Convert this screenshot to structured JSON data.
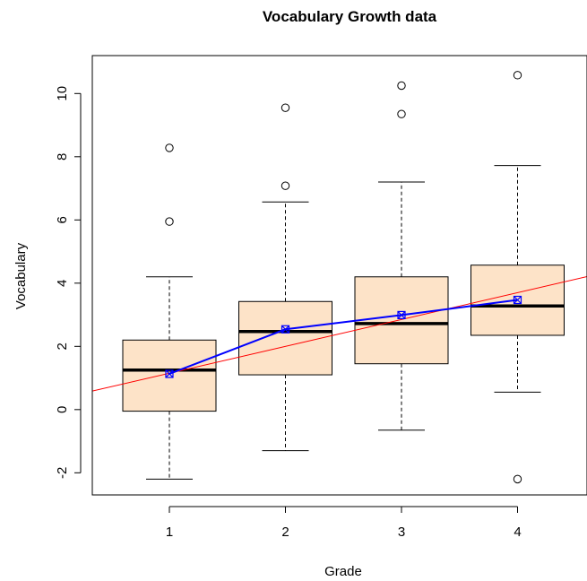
{
  "chart_data": {
    "type": "box",
    "title": "Vocabulary Growth data",
    "xlabel": "Grade",
    "ylabel": "Vocabulary",
    "categories": [
      "1",
      "2",
      "3",
      "4"
    ],
    "ylim": [
      -2.7,
      11.2
    ],
    "yticks": [
      "-2",
      "0",
      "2",
      "4",
      "6",
      "8",
      "10"
    ],
    "ytick_values": [
      -2,
      0,
      2,
      4,
      6,
      8,
      10
    ],
    "box_fill": "#fde3c8",
    "boxes": [
      {
        "category": "1",
        "whisker_low": -2.2,
        "q1": -0.05,
        "median": 1.25,
        "q3": 2.2,
        "whisker_high": 4.2,
        "outliers": [
          5.95,
          8.28
        ]
      },
      {
        "category": "2",
        "whisker_low": -1.3,
        "q1": 1.1,
        "median": 2.47,
        "q3": 3.42,
        "whisker_high": 6.57,
        "outliers": [
          7.08,
          9.55
        ]
      },
      {
        "category": "3",
        "whisker_low": -0.65,
        "q1": 1.45,
        "median": 2.72,
        "q3": 4.2,
        "whisker_high": 7.2,
        "outliers": [
          9.35,
          10.25
        ]
      },
      {
        "category": "4",
        "whisker_low": 0.55,
        "q1": 2.35,
        "median": 3.28,
        "q3": 4.57,
        "whisker_high": 7.72,
        "outliers": [
          -2.2,
          10.58
        ]
      }
    ],
    "mean_line": {
      "color": "#0000ff",
      "values": [
        1.13,
        2.54,
        2.99,
        3.47
      ]
    },
    "regression_line": {
      "color": "#ff0000",
      "intercept": 0.3,
      "slope": 0.85
    }
  }
}
